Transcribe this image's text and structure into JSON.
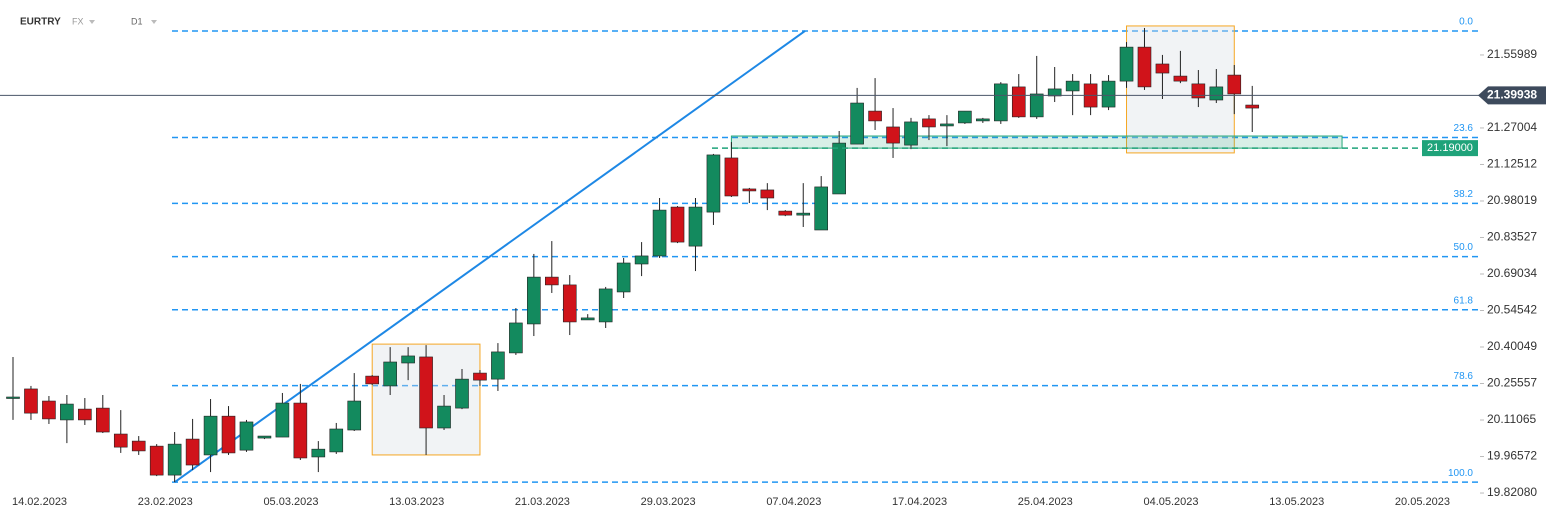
{
  "header": {
    "symbol": "EURTRY",
    "market": "FX",
    "interval": "D1"
  },
  "chart_data": {
    "type": "candlestick",
    "categories": [
      "14.02.2023",
      null,
      null,
      null,
      null,
      null,
      null,
      "23.02.2023",
      null,
      null,
      null,
      null,
      null,
      null,
      "05.03.2023",
      null,
      null,
      null,
      null,
      null,
      null,
      "13.03.2023",
      null,
      null,
      null,
      null,
      null,
      null,
      "21.03.2023",
      null,
      null,
      null,
      null,
      null,
      null,
      "29.03.2023",
      null,
      null,
      null,
      null,
      null,
      null,
      "07.04.2023",
      null,
      null,
      null,
      null,
      null,
      null,
      "17.04.2023",
      null,
      null,
      null,
      null,
      null,
      null,
      "25.04.2023",
      null,
      null,
      null,
      null,
      null,
      null,
      "04.05.2023",
      null,
      null,
      null,
      null,
      null,
      null,
      "13.05.2023",
      null,
      null,
      null,
      null,
      null,
      null,
      "20.05.2023"
    ],
    "open": [
      20.198,
      20.234,
      20.186,
      20.111,
      20.154,
      20.158,
      20.055,
      20.027,
      20.007,
      19.892,
      20.035,
      19.972,
      20.126,
      19.991,
      20.039,
      20.043,
      20.178,
      19.964,
      19.984,
      20.071,
      20.285,
      20.246,
      20.337,
      20.361,
      20.079,
      20.158,
      20.297,
      20.273,
      20.377,
      20.492,
      20.678,
      20.647,
      20.508,
      20.5,
      20.619,
      20.73,
      20.762,
      20.956,
      20.801,
      20.936,
      21.151,
      21.028,
      21.024,
      20.94,
      20.924,
      20.865,
      21.008,
      21.206,
      21.337,
      21.274,
      21.202,
      21.306,
      21.278,
      21.29,
      21.298,
      21.298,
      21.433,
      21.314,
      21.397,
      21.417,
      21.445,
      21.353,
      21.456,
      21.591,
      21.524,
      21.476,
      21.445,
      21.381,
      21.48,
      21.361,
      null,
      null,
      null,
      null,
      null,
      null,
      null,
      null
    ],
    "high": [
      20.361,
      20.246,
      20.206,
      20.21,
      20.198,
      20.21,
      20.15,
      20.047,
      20.015,
      20.063,
      20.115,
      20.194,
      20.166,
      20.111,
      20.047,
      20.218,
      20.254,
      20.027,
      20.099,
      20.297,
      20.289,
      20.4,
      20.4,
      20.408,
      20.21,
      20.313,
      20.309,
      20.416,
      20.555,
      20.77,
      20.821,
      20.686,
      20.531,
      20.639,
      20.754,
      20.817,
      20.992,
      20.96,
      20.992,
      21.167,
      21.214,
      21.032,
      21.051,
      20.944,
      21.051,
      21.079,
      21.258,
      21.429,
      21.468,
      21.349,
      21.31,
      21.321,
      21.321,
      21.337,
      21.31,
      21.452,
      21.484,
      21.556,
      21.512,
      21.484,
      21.484,
      21.48,
      21.611,
      21.667,
      21.56,
      21.576,
      21.5,
      21.504,
      21.52,
      21.437,
      null,
      null,
      null,
      null,
      null,
      null,
      null,
      null
    ],
    "low": [
      20.111,
      20.111,
      20.095,
      20.019,
      20.091,
      20.059,
      19.98,
      19.972,
      19.888,
      19.864,
      19.912,
      19.904,
      19.972,
      19.984,
      20.035,
      20.043,
      19.952,
      19.904,
      19.976,
      20.067,
      20.25,
      20.21,
      20.269,
      19.972,
      20.071,
      20.154,
      20.246,
      20.226,
      20.369,
      20.444,
      20.615,
      20.448,
      20.508,
      20.476,
      20.595,
      20.682,
      20.754,
      20.813,
      20.702,
      20.885,
      20.996,
      20.972,
      20.944,
      20.92,
      20.877,
      20.865,
      21.008,
      21.206,
      21.262,
      21.151,
      21.186,
      21.222,
      21.198,
      21.286,
      21.29,
      21.286,
      21.31,
      21.306,
      21.373,
      21.321,
      21.321,
      21.341,
      21.429,
      21.421,
      21.385,
      21.448,
      21.353,
      21.369,
      21.325,
      21.254,
      null,
      null,
      null,
      null,
      null,
      null,
      null,
      null
    ],
    "close": [
      20.202,
      20.138,
      20.115,
      20.174,
      20.111,
      20.063,
      20.003,
      19.988,
      19.892,
      20.015,
      19.932,
      20.126,
      19.98,
      20.103,
      20.047,
      20.178,
      19.96,
      19.995,
      20.075,
      20.186,
      20.254,
      20.341,
      20.365,
      20.079,
      20.166,
      20.273,
      20.269,
      20.381,
      20.496,
      20.678,
      20.647,
      20.5,
      20.516,
      20.631,
      20.734,
      20.762,
      20.944,
      20.817,
      20.956,
      21.163,
      21.0,
      21.02,
      20.992,
      20.924,
      20.932,
      21.036,
      21.21,
      21.369,
      21.298,
      21.21,
      21.294,
      21.274,
      21.286,
      21.337,
      21.306,
      21.445,
      21.314,
      21.405,
      21.425,
      21.456,
      21.353,
      21.456,
      21.591,
      21.433,
      21.488,
      21.456,
      21.389,
      21.433,
      21.405,
      21.349,
      null,
      null,
      null,
      null,
      null,
      null,
      null,
      null
    ],
    "up_color": "#138a5e",
    "down_color": "#d0131a",
    "ylim": [
      19.813,
      21.778
    ],
    "yticks": [
      21.55989,
      21.27004,
      21.12512,
      20.98019,
      20.83527,
      20.69034,
      20.54542,
      20.40049,
      20.25557,
      20.11065,
      19.96572,
      {
        "value": 19.8208,
        "label": "19.82080"
      }
    ],
    "current_price": 21.39938,
    "support": {
      "value": 21.19,
      "label": "21.19000",
      "color": "#1fa37a"
    },
    "zone": {
      "x": [
        40,
        74
      ],
      "from": 21.19,
      "to": 21.238
    },
    "fibonacci": {
      "high": 21.655,
      "low": 19.864,
      "color": "#2196f3",
      "levels": [
        {
          "value": 0,
          "label": "0.0"
        },
        23.6,
        38.2,
        {
          "value": 50,
          "label": "50.0"
        },
        61.8,
        78.6,
        {
          "value": 100,
          "label": "100.0"
        }
      ]
    },
    "trendline": {
      "x": [
        9,
        44.1
      ],
      "values": [
        19.864,
        21.655
      ],
      "color": "#1e88e5"
    },
    "boxes": [
      {
        "x": [
          20,
          26
        ],
        "from": 19.972,
        "to": 20.412
      },
      {
        "x": [
          62,
          68
        ],
        "from": 21.171,
        "to": 21.675
      }
    ]
  }
}
